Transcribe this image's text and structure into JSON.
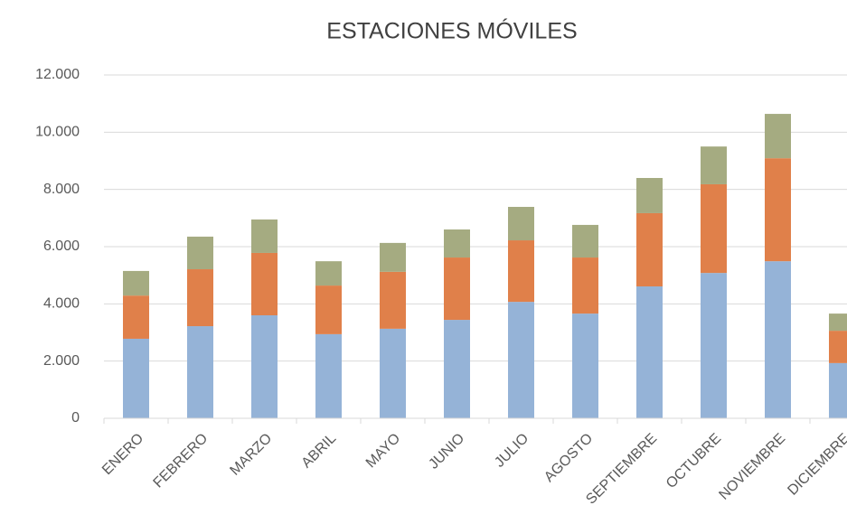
{
  "chart_data": {
    "type": "stacked_bar",
    "title": "ESTACIONES MÓVILES",
    "categories": [
      "ENERO",
      "FEBRERO",
      "MARZO",
      "ABRIL",
      "MAYO",
      "JUNIO",
      "JULIO",
      "AGOSTO",
      "SEPTIEMBRE",
      "OCTUBRE",
      "NOVIEMBRE",
      "DICIEMBRE"
    ],
    "series": [
      {
        "color": "#95b3d7",
        "values": [
          2780,
          3220,
          3600,
          2940,
          3130,
          3440,
          4070,
          3660,
          4610,
          5080,
          5490,
          1930
        ]
      },
      {
        "color": "#e0804a",
        "values": [
          1510,
          1990,
          2180,
          1700,
          1990,
          2180,
          2150,
          1960,
          2560,
          3100,
          3600,
          1130
        ]
      },
      {
        "color": "#a5ab81",
        "values": [
          860,
          1140,
          1170,
          850,
          1010,
          980,
          1170,
          1140,
          1230,
          1320,
          1550,
          600
        ]
      }
    ],
    "ylim": [
      0,
      12000
    ],
    "yticks": [
      0,
      {
        "value": 2000,
        "label": "2.000"
      },
      {
        "value": 4000,
        "label": "4.000"
      },
      {
        "value": 6000,
        "label": "6.000"
      },
      {
        "value": 8000,
        "label": "8.000"
      },
      {
        "value": 10000,
        "label": "10.000"
      },
      {
        "value": 12000,
        "label": "12.000"
      }
    ],
    "grid": true
  }
}
